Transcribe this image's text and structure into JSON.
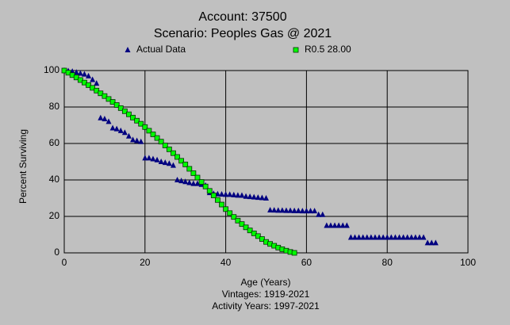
{
  "chart_data": {
    "type": "scatter",
    "title": "Account: 37500",
    "subtitle": "Scenario: Peoples Gas @ 2021",
    "xlabel": "Age (Years)",
    "ylabel": "Percent Surviving",
    "notes": [
      "Vintages: 1919-2021",
      "Activity Years: 1997-2021"
    ],
    "xlim": [
      0,
      100
    ],
    "xticks": [
      0,
      20,
      40,
      60,
      80,
      100
    ],
    "ylim": [
      0,
      100
    ],
    "yticks": [
      0,
      20,
      40,
      60,
      80,
      100
    ],
    "grid": true,
    "series": [
      {
        "name": "Actual Data",
        "color": "#000080",
        "marker": "triangle",
        "x": [
          0,
          1,
          2,
          3,
          4,
          5,
          6,
          7,
          8,
          9,
          10,
          11,
          12,
          13,
          14,
          15,
          16,
          17,
          18,
          19,
          20,
          21,
          22,
          23,
          24,
          25,
          26,
          27,
          28,
          29,
          30,
          31,
          32,
          33,
          34,
          35,
          36,
          37,
          38,
          39,
          40,
          41,
          42,
          43,
          44,
          45,
          46,
          47,
          48,
          49,
          50,
          51,
          52,
          53,
          54,
          55,
          56,
          57,
          58,
          59,
          60,
          61,
          62,
          63,
          64,
          65,
          66,
          67,
          68,
          69,
          70,
          71,
          72,
          73,
          74,
          75,
          76,
          77,
          78,
          79,
          80,
          81,
          82,
          83,
          84,
          85,
          86,
          87,
          88,
          89,
          90,
          91,
          92
        ],
        "values": [
          100,
          99.8,
          99.5,
          99,
          98.5,
          98,
          97,
          95,
          93,
          74,
          73.5,
          72,
          68.5,
          68,
          67,
          66,
          64,
          62,
          61.5,
          61,
          52,
          52,
          51.5,
          51,
          50,
          49.5,
          49,
          48,
          40,
          39.5,
          39,
          38.5,
          38,
          38,
          37.5,
          37,
          33,
          32.5,
          32.3,
          32.2,
          32,
          32,
          31.8,
          31.6,
          31.5,
          31,
          30.8,
          30.6,
          30.4,
          30.2,
          30,
          23.5,
          23.4,
          23.3,
          23.3,
          23.2,
          23.2,
          23.1,
          23.1,
          23,
          23,
          23,
          23,
          21,
          21,
          15,
          15,
          15,
          15,
          15,
          15,
          8.5,
          8.5,
          8.5,
          8.5,
          8.5,
          8.5,
          8.5,
          8.5,
          8.5,
          8.5,
          8.5,
          8.5,
          8.5,
          8.5,
          8.5,
          8.5,
          8.5,
          8.5,
          8.5,
          5.5,
          5.5,
          5.5
        ]
      },
      {
        "name": "R0.5 28.00",
        "color": "#00ff00",
        "marker": "square",
        "x": [
          0,
          1,
          2,
          3,
          4,
          5,
          6,
          7,
          8,
          9,
          10,
          11,
          12,
          13,
          14,
          15,
          16,
          17,
          18,
          19,
          20,
          21,
          22,
          23,
          24,
          25,
          26,
          27,
          28,
          29,
          30,
          31,
          32,
          33,
          34,
          35,
          36,
          37,
          38,
          39,
          40,
          41,
          42,
          43,
          44,
          45,
          46,
          47,
          48,
          49,
          50,
          51,
          52,
          53,
          54,
          55,
          56,
          57
        ],
        "values": [
          100,
          98.8,
          97.5,
          96.2,
          94.8,
          93.4,
          92,
          90.5,
          89,
          87.5,
          86,
          84.4,
          82.8,
          81.1,
          79.4,
          77.7,
          76,
          74.2,
          72.5,
          70.8,
          69,
          67,
          65,
          63,
          61,
          58.9,
          56.8,
          54.7,
          52.6,
          50.5,
          48.5,
          46.1,
          43.7,
          41.3,
          38.9,
          36.4,
          34,
          31.5,
          29,
          26.5,
          24,
          21.8,
          19.7,
          17.7,
          15.8,
          14,
          12.3,
          10.7,
          9.2,
          7.6,
          6,
          4.9,
          3.9,
          2.9,
          2,
          1.2,
          0.5,
          0
        ]
      }
    ]
  }
}
